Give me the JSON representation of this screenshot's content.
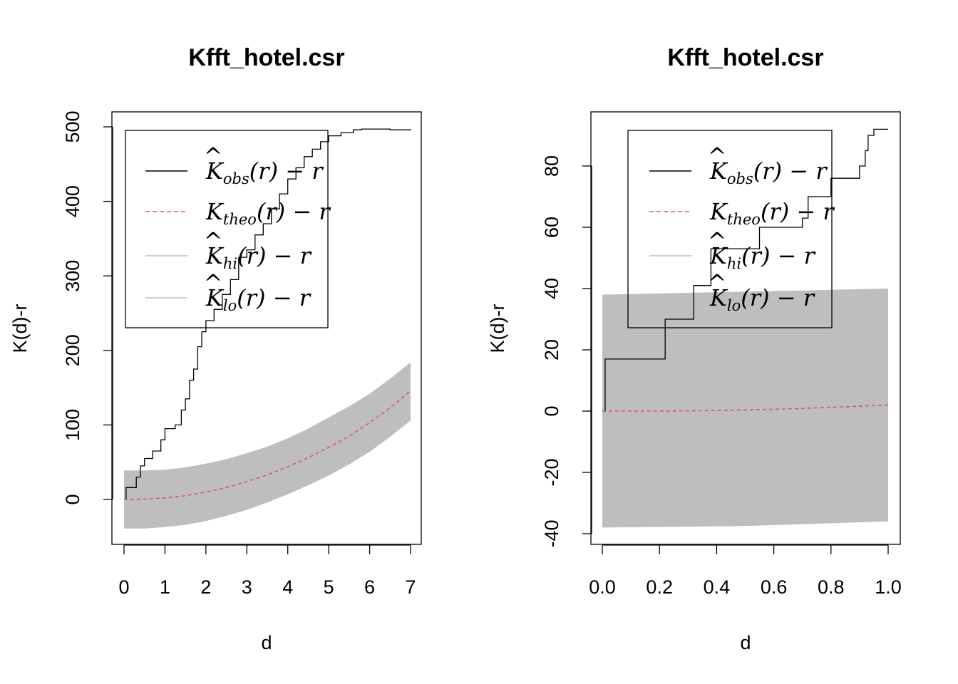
{
  "chart_data": [
    {
      "type": "line",
      "title": "Kfft_hotel.csr",
      "xlabel": "d",
      "ylabel": "K(d)-r",
      "xlim": [
        0,
        7
      ],
      "ylim": [
        -40,
        500
      ],
      "xticks": [
        "0",
        "1",
        "2",
        "3",
        "4",
        "5",
        "6",
        "7"
      ],
      "yticks": [
        "0",
        "100",
        "200",
        "300",
        "400",
        "500"
      ],
      "legend_position": "top-left",
      "legend": [
        {
          "base": "K",
          "hat": "^",
          "sub": "obs",
          "rest": "(r) − r",
          "style": "solid",
          "color": "#000000"
        },
        {
          "base": "K",
          "hat": "",
          "sub": "theo",
          "rest": "(r) − r",
          "style": "dashed",
          "color": "#DF536B"
        },
        {
          "base": "K",
          "hat": "^",
          "sub": "hi",
          "rest": "(r) − r",
          "style": "solid",
          "color": "#BEBEBE"
        },
        {
          "base": "K",
          "hat": "^",
          "sub": "lo",
          "rest": "(r) − r",
          "style": "solid",
          "color": "#BEBEBE"
        }
      ],
      "series": [
        {
          "role": "observed",
          "step": true,
          "color": "#000000",
          "x": [
            0,
            0.05,
            0.3,
            0.4,
            0.5,
            0.7,
            0.9,
            1.0,
            1.25,
            1.4,
            1.5,
            1.6,
            1.7,
            1.8,
            1.9,
            2.0,
            2.2,
            2.4,
            2.6,
            2.8,
            3.0,
            3.2,
            3.4,
            3.6,
            3.8,
            4.0,
            4.2,
            4.4,
            4.6,
            4.8,
            5.0,
            5.3,
            5.6,
            5.8,
            6.5,
            7.0
          ],
          "values": [
            0,
            16,
            30,
            45,
            55,
            65,
            80,
            95,
            100,
            120,
            135,
            160,
            175,
            205,
            225,
            240,
            255,
            275,
            295,
            325,
            335,
            355,
            370,
            390,
            410,
            430,
            445,
            460,
            470,
            480,
            488,
            492,
            496,
            497,
            496,
            495
          ]
        },
        {
          "role": "theoretical",
          "color": "#DF536B",
          "x": [
            0,
            0.5,
            1,
            1.5,
            2,
            2.5,
            3,
            3.5,
            4,
            4.5,
            5,
            5.5,
            6,
            6.5,
            7
          ],
          "values": [
            0,
            0.5,
            2,
            5,
            10,
            16,
            24,
            33,
            44,
            56,
            70,
            85,
            103,
            123,
            146
          ]
        },
        {
          "role": "envelope",
          "color": "#BEBEBE",
          "x": [
            0,
            0.5,
            1,
            1.5,
            2,
            2.5,
            3,
            3.5,
            4,
            4.5,
            5,
            5.5,
            6,
            6.5,
            7
          ],
          "hi": [
            39,
            39,
            40,
            43,
            48,
            54,
            62,
            71,
            82,
            95,
            110,
            125,
            142,
            162,
            184
          ],
          "lo": [
            -39,
            -39,
            -37,
            -34,
            -29,
            -22,
            -14,
            -4,
            7,
            19,
            32,
            47,
            64,
            84,
            106
          ]
        }
      ]
    },
    {
      "type": "line",
      "title": "Kfft_hotel.csr",
      "xlabel": "d",
      "ylabel": "K(d)-r",
      "xlim": [
        0,
        1
      ],
      "ylim": [
        -40,
        90
      ],
      "xticks": [
        "0.0",
        "0.2",
        "0.4",
        "0.6",
        "0.8",
        "1.0"
      ],
      "yticks": [
        "-40",
        "-20",
        "0",
        "20",
        "40",
        "60",
        "80"
      ],
      "legend_position": "top-left",
      "legend": [
        {
          "base": "K",
          "hat": "^",
          "sub": "obs",
          "rest": "(r) − r",
          "style": "solid",
          "color": "#000000"
        },
        {
          "base": "K",
          "hat": "",
          "sub": "theo",
          "rest": "(r) − r",
          "style": "dashed",
          "color": "#DF536B"
        },
        {
          "base": "K",
          "hat": "^",
          "sub": "hi",
          "rest": "(r) − r",
          "style": "solid",
          "color": "#BEBEBE"
        },
        {
          "base": "K",
          "hat": "^",
          "sub": "lo",
          "rest": "(r) − r",
          "style": "solid",
          "color": "#BEBEBE"
        }
      ],
      "series": [
        {
          "role": "observed",
          "step": true,
          "color": "#000000",
          "x": [
            0,
            0.01,
            0.2,
            0.22,
            0.3,
            0.32,
            0.37,
            0.38,
            0.42,
            0.48,
            0.55,
            0.62,
            0.7,
            0.72,
            0.75,
            0.8,
            0.86,
            0.9,
            0.92,
            0.93,
            0.95,
            1.0
          ],
          "values": [
            0,
            17,
            17,
            30,
            30,
            41,
            41,
            53,
            53,
            53,
            60,
            60,
            63,
            70,
            70,
            76,
            76,
            80,
            85,
            90,
            92,
            92
          ]
        },
        {
          "role": "theoretical",
          "color": "#DF536B",
          "x": [
            0,
            0.2,
            0.4,
            0.6,
            0.8,
            1.0
          ],
          "values": [
            0,
            0,
            0.2,
            0.6,
            1.2,
            2
          ]
        },
        {
          "role": "envelope",
          "color": "#BEBEBE",
          "x": [
            0,
            0.5,
            1.0
          ],
          "hi": [
            38,
            39,
            40
          ],
          "lo": [
            -38,
            -37.5,
            -36
          ]
        }
      ]
    }
  ]
}
